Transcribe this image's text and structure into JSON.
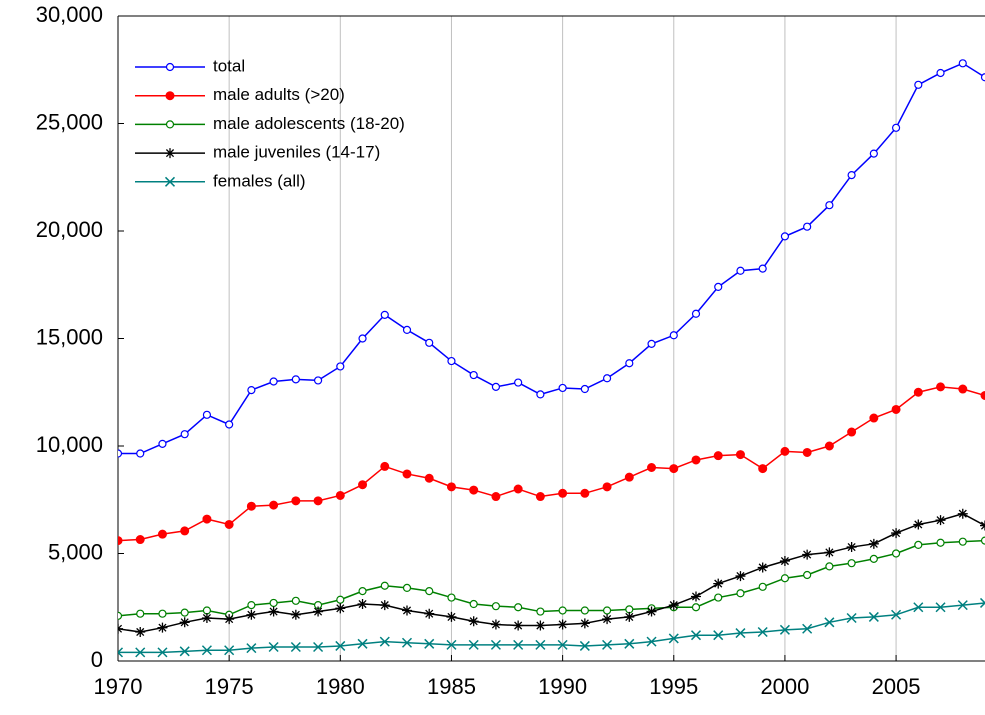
{
  "chart_data": {
    "type": "line",
    "x": [
      1970,
      1971,
      1972,
      1973,
      1974,
      1975,
      1976,
      1977,
      1978,
      1979,
      1980,
      1981,
      1982,
      1983,
      1984,
      1985,
      1986,
      1987,
      1988,
      1989,
      1990,
      1991,
      1992,
      1993,
      1994,
      1995,
      1996,
      1997,
      1998,
      1999,
      2000,
      2001,
      2002,
      2003,
      2004,
      2005,
      2006,
      2007,
      2008,
      2009
    ],
    "xlim": [
      1970,
      2009
    ],
    "xticks": [
      1970,
      1975,
      1980,
      1985,
      1990,
      1995,
      2000,
      2005
    ],
    "ylim": [
      0,
      30000
    ],
    "yticks": [
      0,
      {
        "value": 5000,
        "label": "5,000"
      },
      {
        "value": 10000,
        "label": "10,000"
      },
      {
        "value": 15000,
        "label": "15,000"
      },
      {
        "value": 20000,
        "label": "20,000"
      },
      {
        "value": 25000,
        "label": "25,000"
      },
      {
        "value": 30000,
        "label": "30,000"
      }
    ],
    "grid": "x",
    "legend": "upper left",
    "series": [
      {
        "name": "total",
        "color": "#0000ff",
        "marker": "circle-open",
        "values": [
          9650,
          9650,
          10100,
          10550,
          11450,
          11000,
          12600,
          13000,
          13100,
          13050,
          13700,
          15000,
          16100,
          15400,
          14800,
          13950,
          13300,
          12750,
          12950,
          12400,
          12700,
          12650,
          13150,
          13850,
          14750,
          15150,
          16150,
          17400,
          18150,
          18250,
          19750,
          20200,
          21200,
          22600,
          23600,
          24800,
          26800,
          27350,
          27800,
          27150
        ]
      },
      {
        "name": "male adults (>20)",
        "color": "#ff0000",
        "marker": "circle-filled",
        "values": [
          5600,
          5650,
          5900,
          6050,
          6600,
          6350,
          7200,
          7250,
          7450,
          7450,
          7700,
          8200,
          9050,
          8700,
          8500,
          8100,
          7950,
          7650,
          8000,
          7650,
          7800,
          7800,
          8100,
          8550,
          9000,
          8950,
          9350,
          9550,
          9600,
          8950,
          9750,
          9700,
          10000,
          10650,
          11300,
          11700,
          12500,
          12750,
          12650,
          12350
        ]
      },
      {
        "name": "male adolescents (18-20)",
        "color": "#008000",
        "marker": "circle-open",
        "values": [
          2100,
          2200,
          2200,
          2250,
          2350,
          2150,
          2600,
          2700,
          2800,
          2600,
          2850,
          3250,
          3500,
          3400,
          3250,
          2950,
          2650,
          2550,
          2500,
          2300,
          2350,
          2350,
          2350,
          2400,
          2450,
          2500,
          2500,
          2950,
          3150,
          3450,
          3850,
          4000,
          4400,
          4550,
          4750,
          5000,
          5400,
          5500,
          5550,
          5600
        ]
      },
      {
        "name": "male juveniles (14-17)",
        "color": "#000000",
        "marker": "star",
        "values": [
          1500,
          1350,
          1550,
          1800,
          2000,
          1950,
          2150,
          2300,
          2150,
          2300,
          2450,
          2650,
          2600,
          2350,
          2200,
          2050,
          1850,
          1700,
          1650,
          1650,
          1700,
          1750,
          1950,
          2050,
          2300,
          2600,
          3000,
          3600,
          3950,
          4350,
          4650,
          4950,
          5050,
          5300,
          5450,
          5950,
          6350,
          6550,
          6850,
          6300
        ]
      },
      {
        "name": "females (all)",
        "color": "#008080",
        "marker": "x",
        "values": [
          400,
          400,
          400,
          450,
          500,
          500,
          600,
          650,
          650,
          650,
          700,
          800,
          900,
          850,
          800,
          750,
          750,
          750,
          750,
          750,
          750,
          700,
          750,
          800,
          900,
          1050,
          1200,
          1200,
          1300,
          1350,
          1450,
          1500,
          1800,
          2000,
          2050,
          2150,
          2500,
          2500,
          2600,
          2700
        ]
      }
    ]
  }
}
